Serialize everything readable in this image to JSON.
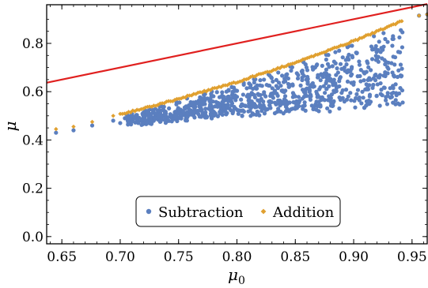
{
  "chart_data": {
    "type": "scatter",
    "xlabel": "μ0",
    "ylabel": "μ",
    "xlim": [
      0.637,
      0.963
    ],
    "ylim": [
      -0.03,
      0.96
    ],
    "xticks": [
      "0.65",
      "0.70",
      "0.75",
      "0.80",
      "0.85",
      "0.90",
      "0.95"
    ],
    "yticks": [
      "0.0",
      "0.2",
      "0.4",
      "0.6",
      "0.8"
    ],
    "grid": false,
    "legend_position": "lower-center",
    "reference_line": {
      "color": "#e0201f",
      "points": [
        [
          0.637,
          0.637
        ],
        [
          0.963,
          0.963
        ]
      ]
    },
    "series": [
      {
        "name": "Subtraction",
        "color": "#5b7fbf",
        "marker": "circle",
        "sample_points": [
          [
            0.645,
            0.43
          ],
          [
            0.66,
            0.44
          ],
          [
            0.676,
            0.46
          ],
          [
            0.694,
            0.48
          ],
          [
            0.7,
            0.47
          ],
          [
            0.71,
            0.49
          ],
          [
            0.72,
            0.46
          ],
          [
            0.74,
            0.47
          ],
          [
            0.75,
            0.5
          ],
          [
            0.76,
            0.48
          ],
          [
            0.77,
            0.49
          ],
          [
            0.78,
            0.52
          ],
          [
            0.8,
            0.53
          ],
          [
            0.82,
            0.52
          ],
          [
            0.84,
            0.54
          ],
          [
            0.86,
            0.55
          ],
          [
            0.88,
            0.56
          ],
          [
            0.9,
            0.58
          ],
          [
            0.92,
            0.6
          ],
          [
            0.94,
            0.62
          ],
          [
            0.942,
            0.555
          ],
          [
            0.956,
            0.915
          ],
          [
            0.963,
            0.92
          ]
        ]
      },
      {
        "name": "Addition",
        "color": "#e0a030",
        "marker": "diamond",
        "sample_points": [
          [
            0.645,
            0.445
          ],
          [
            0.66,
            0.455
          ],
          [
            0.676,
            0.475
          ],
          [
            0.694,
            0.5
          ],
          [
            0.72,
            0.53
          ],
          [
            0.75,
            0.57
          ],
          [
            0.8,
            0.64
          ],
          [
            0.85,
            0.72
          ],
          [
            0.9,
            0.81
          ],
          [
            0.94,
            0.89
          ],
          [
            0.956,
            0.915
          ],
          [
            0.963,
            0.92
          ]
        ]
      }
    ]
  }
}
